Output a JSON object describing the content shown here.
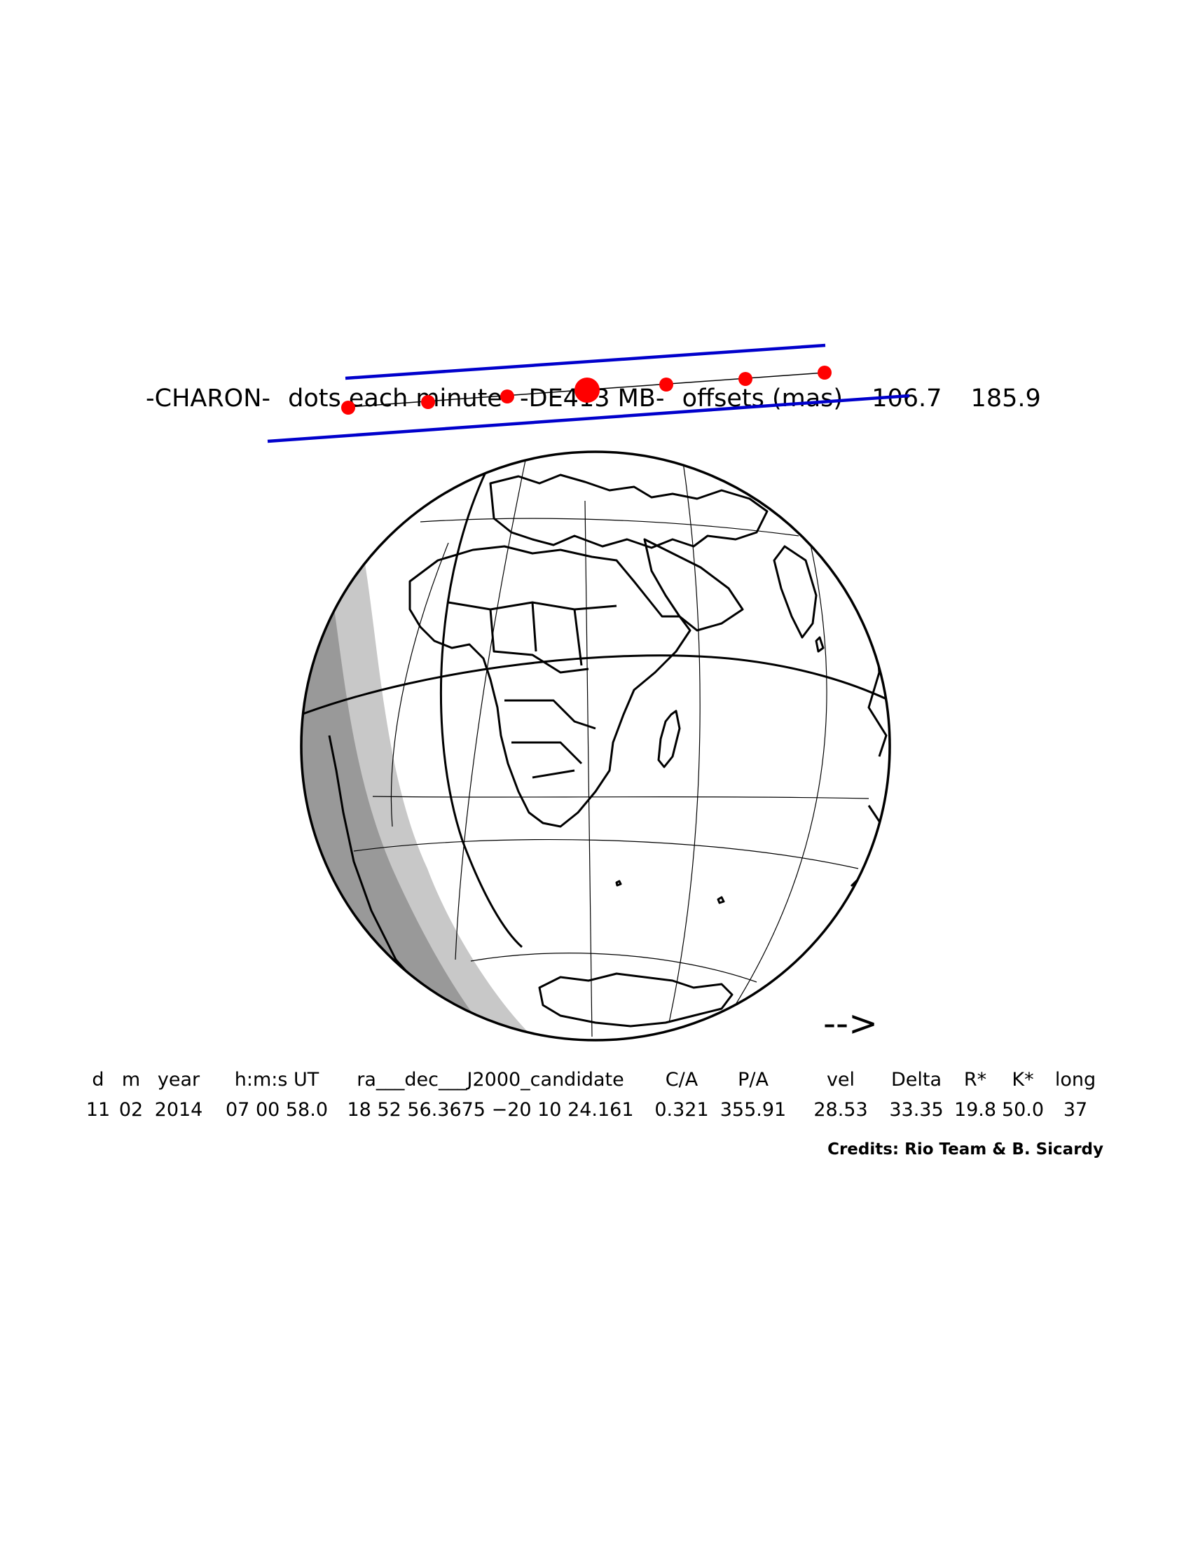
{
  "title": {
    "object": "-CHARON-",
    "dots_label": "dots each minute",
    "ephemeris": "-DE413 MB-",
    "offsets_label": "offsets (mas)",
    "offset_ra": "106.7",
    "offset_dec": "185.9"
  },
  "arrow": "-->",
  "table": {
    "headers": [
      "d",
      "m",
      "year",
      "h:m:s UT",
      "ra___dec___J2000_candidate",
      "C/A",
      "P/A",
      "vel",
      "Delta",
      "R*",
      "K*",
      "long"
    ],
    "values": [
      "11",
      "02",
      "2014",
      "07 00 58.0",
      "18 52 56.3675 −20 10 24.161",
      "0.321",
      "355.91",
      "28.53",
      "33.35",
      "19.8",
      "50.0",
      "37"
    ]
  },
  "credits": "Credits: Rio Team & B. Sicardy",
  "colors": {
    "shadow_path": "#0000cc",
    "dots": "#ff0000",
    "night": "#c8c8c8",
    "deep_night": "#999999",
    "land_outline": "#000000"
  },
  "path": {
    "minute_dots": 7,
    "closest_approach_dot_index": 3
  }
}
